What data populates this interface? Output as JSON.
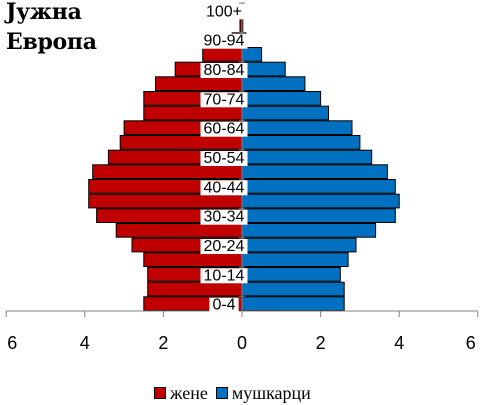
{
  "chart_data": {
    "type": "bar",
    "orientation": "horizontal-population-pyramid",
    "title_lines": [
      "Јужна",
      "Европа"
    ],
    "categories": [
      "0-4",
      "5-9",
      "10-14",
      "15-19",
      "20-24",
      "25-29",
      "30-34",
      "35-39",
      "40-44",
      "45-49",
      "50-54",
      "55-59",
      "60-64",
      "65-69",
      "70-74",
      "75-79",
      "80-84",
      "85-89",
      "90-94",
      "95-99",
      "100+"
    ],
    "category_labels_shown": [
      "0-4",
      "10-14",
      "20-24",
      "30-34",
      "40-44",
      "50-54",
      "60-64",
      "70-74",
      "80-84",
      "90-94",
      "100+"
    ],
    "series": [
      {
        "name": "жене",
        "color": "#C00000",
        "side": "left",
        "values": [
          2.5,
          2.4,
          2.4,
          2.5,
          2.8,
          3.2,
          3.7,
          3.9,
          3.9,
          3.8,
          3.4,
          3.1,
          3.0,
          2.5,
          2.5,
          2.2,
          1.7,
          1.0,
          0.25,
          0.05,
          0.0
        ]
      },
      {
        "name": "мушкарци",
        "color": "#0070C0",
        "side": "right",
        "values": [
          2.6,
          2.6,
          2.5,
          2.7,
          2.9,
          3.4,
          3.9,
          4.0,
          3.9,
          3.7,
          3.3,
          3.0,
          2.8,
          2.2,
          2.0,
          1.6,
          1.1,
          0.5,
          0.1,
          0.02,
          0.0
        ]
      }
    ],
    "xlim": [
      -6,
      6
    ],
    "x_tick_values": [
      -6,
      -4,
      -2,
      0,
      2,
      4,
      6
    ],
    "x_tick_labels": [
      "6",
      "4",
      "2",
      "0",
      "2",
      "4",
      "6"
    ],
    "xlabel": "",
    "ylabel": "",
    "grid": false,
    "legend_position": "bottom"
  }
}
